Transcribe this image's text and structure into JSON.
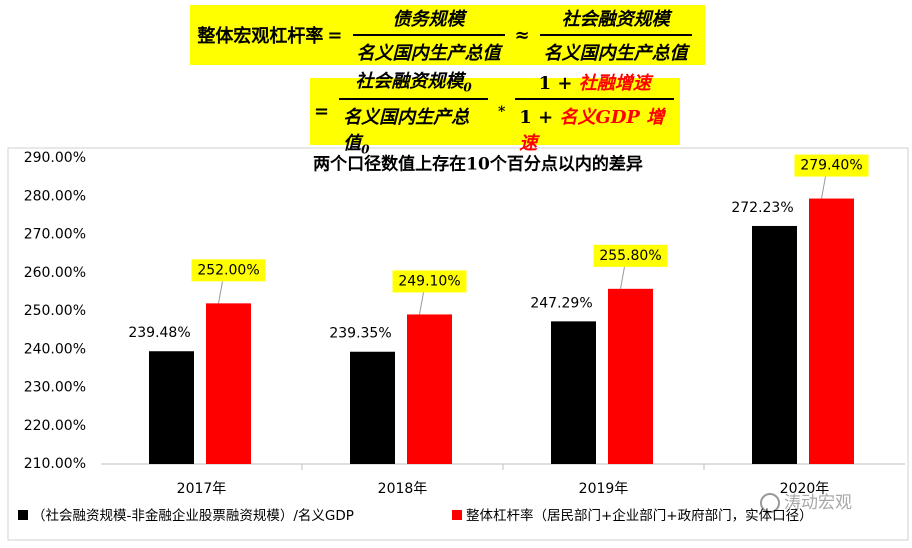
{
  "formula_1": {
    "lhs": "整体宏观杠杆率",
    "eq": "=",
    "fraction_1": {
      "numerator": "债务规模",
      "denominator": "名义国内生产总值"
    },
    "approx": "≈",
    "fraction_2": {
      "numerator": "社会融资规模",
      "denominator": "名义国内生产总值"
    }
  },
  "formula_2": {
    "eq": "=",
    "fraction_1": {
      "numerator": "社会融资规模",
      "numerator_sub": "0",
      "denominator": "名义国内生产总值",
      "denominator_sub": "0"
    },
    "times": "*",
    "fraction_2": {
      "numerator_prefix": "1 +",
      "numerator_highlight": "社融增速",
      "denominator_prefix": "1 +",
      "denominator_highlight": "名义GDP 增速"
    }
  },
  "watermark": "涛动宏观",
  "chart_data": {
    "type": "bar",
    "title": "两个口径数值上存在10个百分点以内的差异",
    "categories": [
      "2017年",
      "2018年",
      "2019年",
      "2020年"
    ],
    "series": [
      {
        "name": "（社会融资规模-非金融企业股票融资规模）/名义GDP",
        "color": "#000000",
        "values": [
          239.48,
          239.35,
          247.29,
          272.23
        ],
        "value_labels": [
          "239.48%",
          "239.35%",
          "247.29%",
          "272.23%"
        ]
      },
      {
        "name": "整体杠杆率（居民部门+企业部门+政府部门，实体口径）",
        "color": "#ff0000",
        "values": [
          252.0,
          249.1,
          255.8,
          279.4
        ],
        "value_labels": [
          "252.00%",
          "249.10%",
          "255.80%",
          "279.40%"
        ]
      }
    ],
    "ylim": [
      210,
      290
    ],
    "yticks": [
      {
        "value": 210,
        "label": "210.00%"
      },
      {
        "value": 220,
        "label": "220.00%"
      },
      {
        "value": 230,
        "label": "230.00%"
      },
      {
        "value": 240,
        "label": "240.00%"
      },
      {
        "value": 250,
        "label": "250.00%"
      },
      {
        "value": 260,
        "label": "260.00%"
      },
      {
        "value": 270,
        "label": "270.00%"
      },
      {
        "value": 280,
        "label": "280.00%"
      },
      {
        "value": 290,
        "label": "290.00%"
      }
    ],
    "grid": false,
    "legend": "bottom"
  }
}
